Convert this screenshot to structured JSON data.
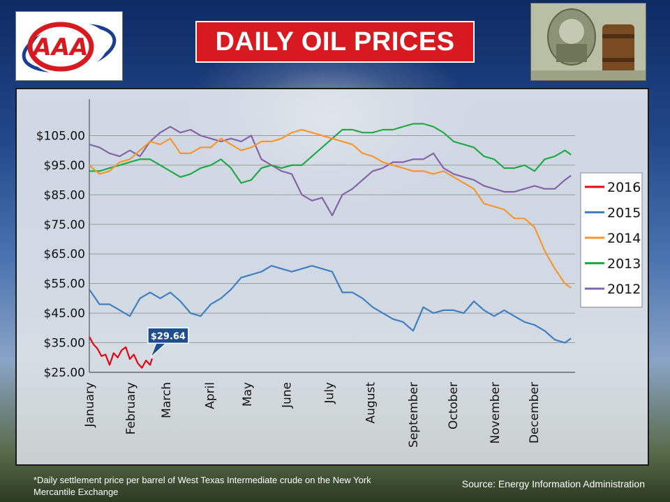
{
  "title": "DAILY OIL PRICES",
  "logo": {
    "text": "AAA",
    "icon": "aaa-logo-icon",
    "color": "#d71920",
    "swoosh_color": "#1b3f8f"
  },
  "footnote": "*Daily settlement price per barrel of West Texas Intermediate crude on the New York Mercantile Exchange",
  "source": "Source: Energy Information  Administration",
  "chart_data": {
    "type": "line",
    "title": "",
    "xlabel": "",
    "ylabel": "",
    "ylim": [
      25,
      115
    ],
    "xlim": [
      0,
      12
    ],
    "yticks": [
      25,
      35,
      45,
      55,
      65,
      75,
      85,
      95,
      105
    ],
    "ytick_labels": [
      "$25.00",
      "$35.00",
      "$45.00",
      "$55.00",
      "$65.00",
      "$75.00",
      "$85.00",
      "$95.00",
      "$105.00"
    ],
    "months": [
      "January",
      "February",
      "March",
      "April",
      "May",
      "June",
      "July",
      "August",
      "September",
      "October",
      "November",
      "December"
    ],
    "month_positions": [
      0,
      1.02,
      1.9,
      2.97,
      3.9,
      4.87,
      5.92,
      6.94,
      8.0,
      8.98,
      10.02,
      10.98
    ],
    "grid": true,
    "legend": "right",
    "annotation": {
      "text": "$29.64",
      "series": "2016",
      "x": 1.55,
      "y": 29.64
    },
    "series": [
      {
        "name": "2016",
        "color": "#e30613",
        "x": [
          0,
          0.1,
          0.2,
          0.3,
          0.4,
          0.5,
          0.6,
          0.7,
          0.8,
          0.9,
          1.0,
          1.1,
          1.2,
          1.3,
          1.4,
          1.5,
          1.55
        ],
        "y": [
          37.0,
          34.5,
          33.0,
          30.5,
          31.0,
          27.5,
          31.5,
          30.0,
          32.5,
          33.5,
          29.5,
          31.0,
          28.0,
          26.5,
          29.0,
          27.5,
          29.64
        ]
      },
      {
        "name": "2015",
        "color": "#3f7fc2",
        "x": [
          0,
          0.25,
          0.5,
          0.75,
          1.0,
          1.25,
          1.5,
          1.75,
          2.0,
          2.25,
          2.5,
          2.75,
          3.0,
          3.25,
          3.5,
          3.75,
          4.0,
          4.25,
          4.5,
          4.75,
          5.0,
          5.25,
          5.5,
          5.75,
          6.0,
          6.25,
          6.5,
          6.75,
          7.0,
          7.25,
          7.5,
          7.75,
          8.0,
          8.25,
          8.5,
          8.75,
          9.0,
          9.25,
          9.5,
          9.75,
          10.0,
          10.25,
          10.5,
          10.75,
          11.0,
          11.25,
          11.5,
          11.75,
          11.9
        ],
        "y": [
          53,
          48,
          48,
          46,
          44,
          50,
          52,
          50,
          52,
          49,
          45,
          44,
          48,
          50,
          53,
          57,
          58,
          59,
          61,
          60,
          59,
          60,
          61,
          60,
          59,
          52,
          52,
          50,
          47,
          45,
          43,
          42,
          39,
          47,
          45,
          46,
          46,
          45,
          49,
          46,
          44,
          46,
          44,
          42,
          41,
          39,
          36,
          35,
          36.5
        ]
      },
      {
        "name": "2014",
        "color": "#f7962c",
        "x": [
          0,
          0.25,
          0.5,
          0.75,
          1.0,
          1.25,
          1.5,
          1.75,
          2.0,
          2.25,
          2.5,
          2.75,
          3.0,
          3.25,
          3.5,
          3.75,
          4.0,
          4.25,
          4.5,
          4.75,
          5.0,
          5.25,
          5.5,
          5.75,
          6.0,
          6.25,
          6.5,
          6.75,
          7.0,
          7.25,
          7.5,
          7.75,
          8.0,
          8.25,
          8.5,
          8.75,
          9.0,
          9.25,
          9.5,
          9.75,
          10.0,
          10.25,
          10.5,
          10.75,
          11.0,
          11.25,
          11.5,
          11.75,
          11.9
        ],
        "y": [
          95,
          92,
          93,
          96,
          97,
          100,
          103,
          102,
          104,
          99,
          99,
          101,
          101,
          104,
          102,
          100,
          101,
          103,
          103,
          104,
          106,
          107,
          106,
          105,
          104,
          103,
          102,
          99,
          98,
          96,
          95,
          94,
          93,
          93,
          92,
          93,
          91,
          89,
          87,
          82,
          81,
          80,
          77,
          77,
          74,
          66,
          60,
          55,
          53.5
        ]
      },
      {
        "name": "2013",
        "color": "#22a947",
        "x": [
          0,
          0.25,
          0.5,
          0.75,
          1.0,
          1.25,
          1.5,
          1.75,
          2.0,
          2.25,
          2.5,
          2.75,
          3.0,
          3.25,
          3.5,
          3.75,
          4.0,
          4.25,
          4.5,
          4.75,
          5.0,
          5.25,
          5.5,
          5.75,
          6.0,
          6.25,
          6.5,
          6.75,
          7.0,
          7.25,
          7.5,
          7.75,
          8.0,
          8.25,
          8.5,
          8.75,
          9.0,
          9.25,
          9.5,
          9.75,
          10.0,
          10.25,
          10.5,
          10.75,
          11.0,
          11.25,
          11.5,
          11.75,
          11.9
        ],
        "y": [
          93,
          93,
          94,
          95,
          96,
          97,
          97,
          95,
          93,
          91,
          92,
          94,
          95,
          97,
          94,
          89,
          90,
          94,
          95,
          94,
          95,
          95,
          98,
          101,
          104,
          107,
          107,
          106,
          106,
          107,
          107,
          108,
          109,
          109,
          108,
          106,
          103,
          102,
          101,
          98,
          97,
          94,
          94,
          95,
          93,
          97,
          98,
          100,
          98.5
        ]
      },
      {
        "name": "2012",
        "color": "#8464a8",
        "x": [
          0,
          0.25,
          0.5,
          0.75,
          1.0,
          1.25,
          1.5,
          1.75,
          2.0,
          2.25,
          2.5,
          2.75,
          3.0,
          3.25,
          3.5,
          3.75,
          4.0,
          4.25,
          4.5,
          4.75,
          5.0,
          5.25,
          5.5,
          5.75,
          6.0,
          6.25,
          6.5,
          6.75,
          7.0,
          7.25,
          7.5,
          7.75,
          8.0,
          8.25,
          8.5,
          8.75,
          9.0,
          9.25,
          9.5,
          9.75,
          10.0,
          10.25,
          10.5,
          10.75,
          11.0,
          11.25,
          11.5,
          11.75,
          11.9
        ],
        "y": [
          102,
          101,
          99,
          98,
          100,
          98,
          103,
          106,
          108,
          106,
          107,
          105,
          104,
          103,
          104,
          103,
          105,
          97,
          95,
          93,
          92,
          85,
          83,
          84,
          78,
          85,
          87,
          90,
          93,
          94,
          96,
          96,
          97,
          97,
          99,
          94,
          92,
          91,
          90,
          88,
          87,
          86,
          86,
          87,
          88,
          87,
          87,
          90,
          91.5
        ]
      }
    ]
  }
}
